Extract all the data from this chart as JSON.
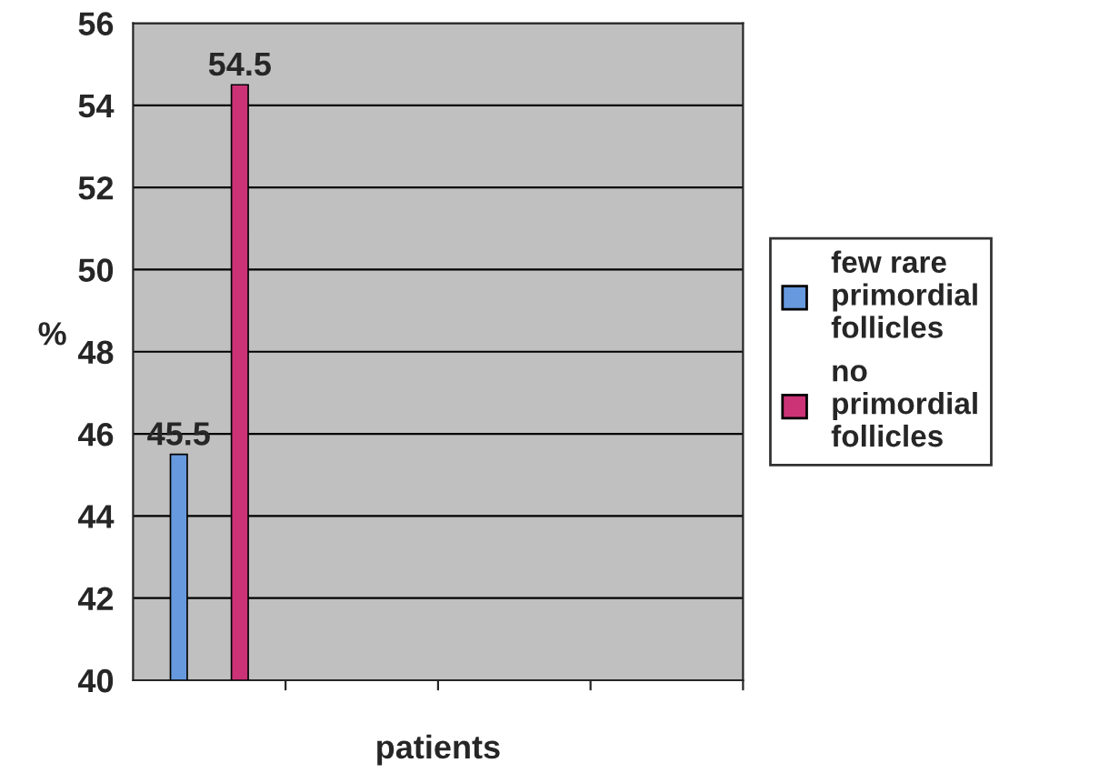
{
  "chart_data": {
    "type": "bar",
    "xlabel": "patients",
    "ylabel": "%",
    "categories": [
      null
    ],
    "series": [
      {
        "name": "few rare primordial follicles",
        "color": "#6699dd",
        "values": [
          45.5
        ]
      },
      {
        "name": "no primordial follicles",
        "color": "#cc3377",
        "values": [
          54.5
        ]
      }
    ],
    "ylim": [
      40,
      56
    ],
    "yticks": [
      40,
      42,
      44,
      46,
      48,
      50,
      52,
      54,
      56
    ],
    "grid": "y",
    "legend": "right",
    "data_labels": true
  }
}
